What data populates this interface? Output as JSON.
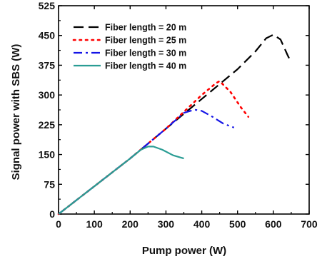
{
  "chart_data": {
    "type": "line",
    "title": "",
    "xlabel": "Pump power (W)",
    "ylabel": "Signal power with SBS (W)",
    "xlim": [
      0,
      700
    ],
    "ylim": [
      0,
      525
    ],
    "xticks": [
      0,
      100,
      200,
      300,
      400,
      500,
      600,
      700
    ],
    "yticks": [
      0,
      75,
      150,
      225,
      300,
      375,
      450,
      525
    ],
    "grid": false,
    "legend_position": "top-left",
    "series": [
      {
        "name": "Fiber length = 20 m",
        "color": "#000000",
        "dash": "dash",
        "x": [
          0,
          100,
          200,
          300,
          400,
          500,
          550,
          580,
          600,
          620,
          640,
          650
        ],
        "y": [
          0,
          70,
          140,
          215,
          290,
          365,
          410,
          443,
          452,
          440,
          400,
          382
        ]
      },
      {
        "name": "Fiber length = 25 m",
        "color": "#ff0000",
        "dash": "dot",
        "x": [
          0,
          100,
          200,
          300,
          400,
          440,
          450,
          480,
          510,
          530
        ],
        "y": [
          0,
          70,
          140,
          215,
          300,
          330,
          335,
          308,
          268,
          245
        ]
      },
      {
        "name": "Fiber length = 30 m",
        "color": "#1414e6",
        "dash": "dashdot",
        "x": [
          0,
          100,
          200,
          300,
          350,
          380,
          400,
          430,
          460,
          490
        ],
        "y": [
          0,
          70,
          140,
          215,
          255,
          263,
          260,
          245,
          228,
          218
        ]
      },
      {
        "name": "Fiber length = 40 m",
        "color": "#2a9d94",
        "dash": "solid",
        "x": [
          0,
          100,
          200,
          230,
          250,
          265,
          290,
          320,
          350
        ],
        "y": [
          0,
          70,
          140,
          162,
          170,
          170,
          162,
          148,
          140
        ]
      }
    ]
  }
}
